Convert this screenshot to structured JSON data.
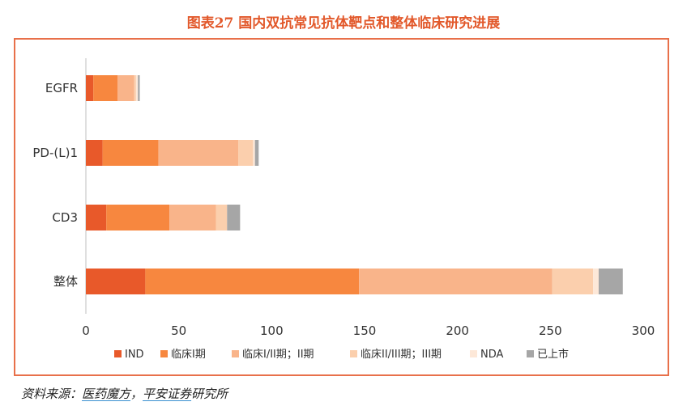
{
  "title": "图表27 国内双抗常见抗体靶点和整体临床研究进展",
  "source": {
    "prefix": "资料来源：",
    "name1": "医药魔方",
    "sep": "，",
    "name2": "平安证券",
    "suffix": "研究所"
  },
  "chart_data": {
    "type": "bar",
    "orientation": "horizontal",
    "stacked": true,
    "categories": [
      "EGFR",
      "PD-(L)1",
      "CD3",
      "整体"
    ],
    "xlim": [
      0,
      300
    ],
    "xticks": [
      0,
      50,
      100,
      150,
      200,
      250,
      300
    ],
    "legend_position": "bottom",
    "series": [
      {
        "name": "IND",
        "color": "#e8592a",
        "values": [
          4,
          9,
          11,
          32
        ]
      },
      {
        "name": "临床I期",
        "color": "#f7873f",
        "values": [
          13,
          30,
          34,
          115
        ]
      },
      {
        "name": "临床I/II期；II期",
        "color": "#f9b48a",
        "values": [
          9,
          43,
          25,
          104
        ]
      },
      {
        "name": "临床II/III期；III期",
        "color": "#fbcfad",
        "values": [
          1,
          8,
          6,
          22
        ]
      },
      {
        "name": "NDA",
        "color": "#fde8d8",
        "values": [
          1,
          1,
          0,
          3
        ]
      },
      {
        "name": "已上市",
        "color": "#a6a6a6",
        "values": [
          1,
          2,
          7,
          13
        ]
      }
    ]
  }
}
